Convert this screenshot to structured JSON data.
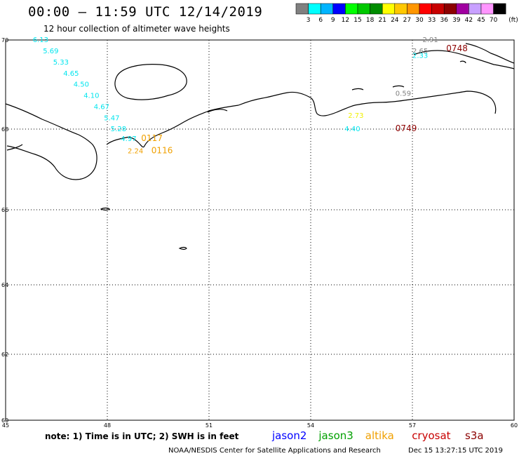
{
  "header": {
    "title": "00:00 – 11:59 UTC 12/14/2019",
    "subtitle": "12 hour collection of altimeter wave heights"
  },
  "legend": {
    "unit": "(ft)",
    "colors": [
      "#808080",
      "#00ffff",
      "#00b4ff",
      "#0000ff",
      "#00ff00",
      "#00c800",
      "#008c00",
      "#ffff00",
      "#ffc800",
      "#ff9600",
      "#ff0000",
      "#c80000",
      "#8c0000",
      "#a000a0",
      "#c8a0ff",
      "#ff96ff",
      "#000000"
    ],
    "ticks": [
      "3",
      "6",
      "9",
      "12",
      "15",
      "18",
      "21",
      "24",
      "27",
      "30",
      "33",
      "36",
      "39",
      "42",
      "45",
      "70"
    ]
  },
  "axes": {
    "lon_labels": [
      "45",
      "48",
      "51",
      "54",
      "57",
      "60"
    ],
    "lat_labels": [
      "70",
      "68",
      "66",
      "64",
      "62",
      "60"
    ],
    "lon_range": [
      45,
      60
    ],
    "lat_range": [
      60,
      70
    ]
  },
  "observations": [
    {
      "text": "6.13",
      "lon": 45.8,
      "lat": 69.95,
      "color": "#00e5ee"
    },
    {
      "text": "5.69",
      "lon": 46.1,
      "lat": 69.7,
      "color": "#00e5ee"
    },
    {
      "text": "5.33",
      "lon": 46.4,
      "lat": 69.45,
      "color": "#00e5ee"
    },
    {
      "text": "4.65",
      "lon": 46.7,
      "lat": 69.2,
      "color": "#00e5ee"
    },
    {
      "text": "4.50",
      "lon": 47.0,
      "lat": 68.95,
      "color": "#00e5ee"
    },
    {
      "text": "4.10",
      "lon": 47.3,
      "lat": 68.7,
      "color": "#00e5ee"
    },
    {
      "text": "4.67",
      "lon": 47.6,
      "lat": 68.45,
      "color": "#00e5ee"
    },
    {
      "text": "5.47",
      "lon": 47.9,
      "lat": 68.2,
      "color": "#00e5ee"
    },
    {
      "text": "5.28",
      "lon": 48.1,
      "lat": 67.95,
      "color": "#00e5ee"
    },
    {
      "text": "4.97",
      "lon": 48.4,
      "lat": 67.7,
      "color": "#00e5ee"
    },
    {
      "text": "2.24",
      "lon": 48.6,
      "lat": 67.4,
      "color": "#f0a000"
    },
    {
      "text": "2.73",
      "lon": 55.1,
      "lat": 68.25,
      "color": "#f0f000"
    },
    {
      "text": "4.40",
      "lon": 55.0,
      "lat": 67.95,
      "color": "#00e5ee"
    },
    {
      "text": "0.59",
      "lon": 56.5,
      "lat": 68.75,
      "color": "#808080"
    },
    {
      "text": "2.91",
      "lon": 57.3,
      "lat": 69.95,
      "color": "#808080"
    },
    {
      "text": "2.65",
      "lon": 57.0,
      "lat": 69.7,
      "color": "#808080"
    },
    {
      "text": "2.33",
      "lon": 57.0,
      "lat": 69.6,
      "color": "#00e5ee"
    }
  ],
  "time_labels": [
    {
      "text": "0117",
      "lon": 49.0,
      "lat": 67.7,
      "color": "#f0a000"
    },
    {
      "text": "0116",
      "lon": 49.3,
      "lat": 67.4,
      "color": "#f0a000"
    },
    {
      "text": "0749",
      "lon": 56.5,
      "lat": 67.95,
      "color": "#8c0000"
    },
    {
      "text": "0748",
      "lon": 58.0,
      "lat": 69.75,
      "color": "#8c0000"
    }
  ],
  "footer": {
    "note": "note: 1) Time is in UTC; 2) SWH is in feet",
    "credit": "NOAA/NESDIS Center for Satellite Applications and Research",
    "timestamp": "Dec 15 13:27:15 UTC 2019",
    "satellites": [
      {
        "name": "jason2",
        "color": "#0000ff"
      },
      {
        "name": "jason3",
        "color": "#00a000"
      },
      {
        "name": "altika",
        "color": "#f0a000"
      },
      {
        "name": "cryosat",
        "color": "#c80000"
      },
      {
        "name": "s3a",
        "color": "#8c0000"
      }
    ]
  }
}
